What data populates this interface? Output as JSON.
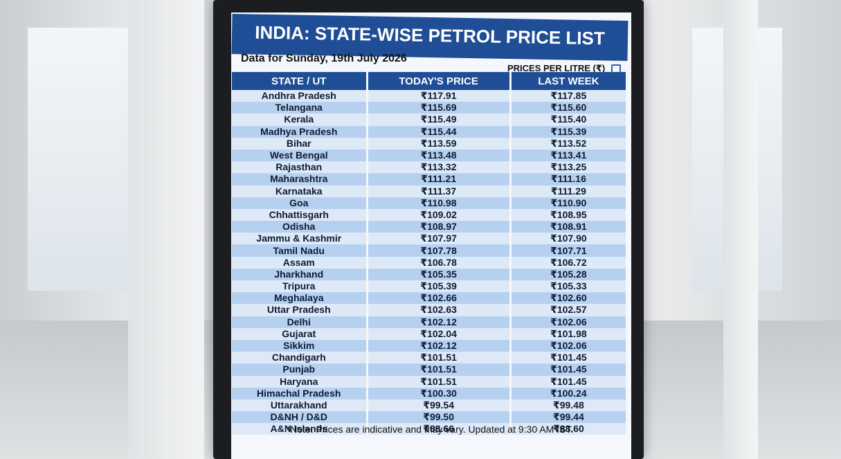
{
  "header": {
    "title": "INDIA: STATE-WISE PETROL PRICE LIST",
    "subtitle": "Data for Sunday, 19th July 2026",
    "units": "PRICES PER LITRE (₹)"
  },
  "table": {
    "columns": [
      "STATE / UT",
      "TODAY'S PRICE",
      "LAST WEEK"
    ],
    "rows": [
      [
        "Andhra Pradesh",
        "₹117.91",
        "₹117.85"
      ],
      [
        "Telangana",
        "₹115.69",
        "₹115.60"
      ],
      [
        "Kerala",
        "₹115.49",
        "₹115.40"
      ],
      [
        "Madhya Pradesh",
        "₹115.44",
        "₹115.39"
      ],
      [
        "Bihar",
        "₹113.59",
        "₹113.52"
      ],
      [
        "West Bengal",
        "₹113.48",
        "₹113.41"
      ],
      [
        "Rajasthan",
        "₹113.32",
        "₹113.25"
      ],
      [
        "Maharashtra",
        "₹111.21",
        "₹111.16"
      ],
      [
        "Karnataka",
        "₹111.37",
        "₹111.29"
      ],
      [
        "Goa",
        "₹110.98",
        "₹110.90"
      ],
      [
        "Chhattisgarh",
        "₹109.02",
        "₹108.95"
      ],
      [
        "Odisha",
        "₹108.97",
        "₹108.91"
      ],
      [
        "Jammu & Kashmir",
        "₹107.97",
        "₹107.90"
      ],
      [
        "Tamil Nadu",
        "₹107.78",
        "₹107.71"
      ],
      [
        "Assam",
        "₹106.78",
        "₹106.72"
      ],
      [
        "Jharkhand",
        "₹105.35",
        "₹105.28"
      ],
      [
        "Tripura",
        "₹105.39",
        "₹105.33"
      ],
      [
        "Meghalaya",
        "₹102.66",
        "₹102.60"
      ],
      [
        "Uttar Pradesh",
        "₹102.63",
        "₹102.57"
      ],
      [
        "Delhi",
        "₹102.12",
        "₹102.06"
      ],
      [
        "Gujarat",
        "₹102.04",
        "₹101.98"
      ],
      [
        "Sikkim",
        "₹102.12",
        "₹102.06"
      ],
      [
        "Chandigarh",
        "₹101.51",
        "₹101.45"
      ],
      [
        "Punjab",
        "₹101.51",
        "₹101.45"
      ],
      [
        "Haryana",
        "₹101.51",
        "₹101.45"
      ],
      [
        "Himachal Pradesh",
        "₹100.30",
        "₹100.24"
      ],
      [
        "Uttarakhand",
        "₹99.54",
        "₹99.48"
      ],
      [
        "D&NH / D&D",
        "₹99.50",
        "₹99.44"
      ],
      [
        "A&N Islands",
        "₹88.66",
        "₹88.60"
      ]
    ]
  },
  "note": "*Note: Prices are indicative and may vary. Updated at 9:30 AM IST."
}
